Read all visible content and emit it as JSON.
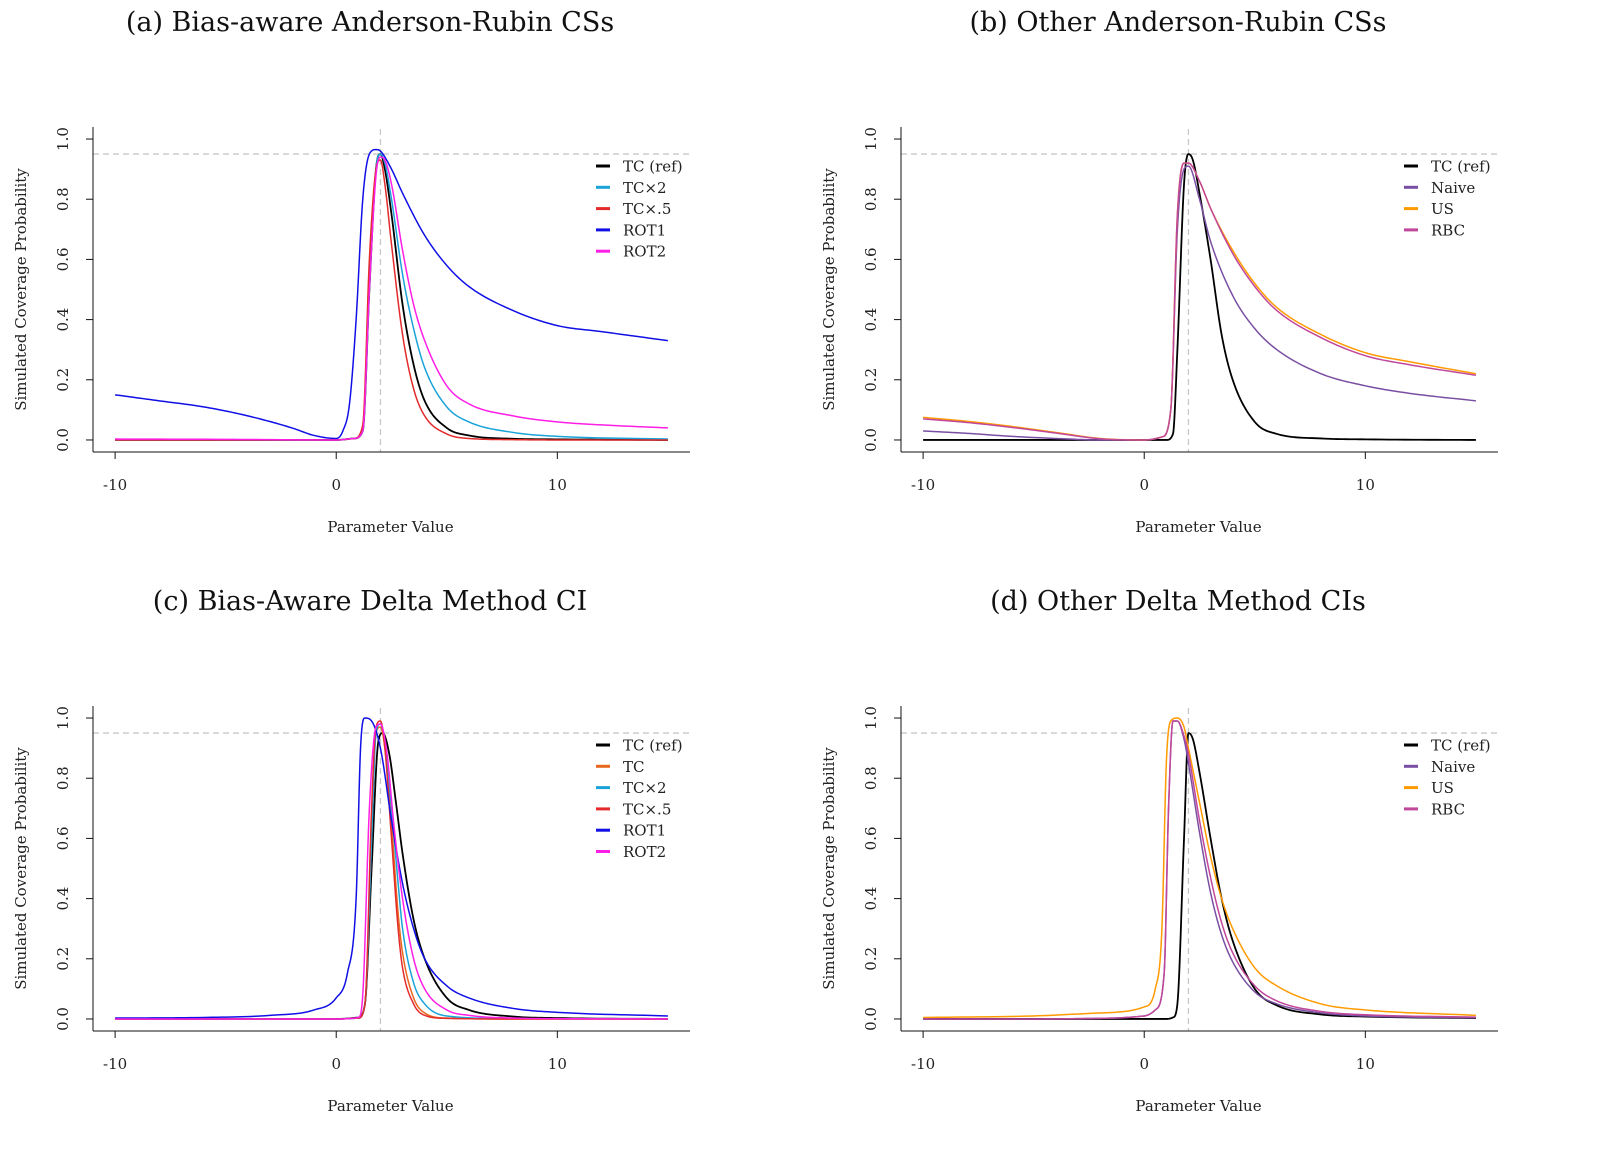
{
  "chart_data": [
    {
      "type": "line",
      "title": "(a) Bias-aware Anderson-Rubin CSs",
      "xlabel": "Parameter Value",
      "ylabel": "Simulated Coverage Probability",
      "xlim": [
        -11,
        16
      ],
      "ylim": [
        -0.04,
        1.04
      ],
      "xticks": [
        -10,
        0,
        10
      ],
      "yticks": [
        0.0,
        0.2,
        0.4,
        0.6,
        0.8,
        1.0
      ],
      "xtick_labels": [
        "-10",
        "0",
        "10"
      ],
      "ytick_labels": [
        "0.0",
        "0.2",
        "0.4",
        "0.6",
        "0.8",
        "1.0"
      ],
      "reference_lines": {
        "vertical_x": 2,
        "horizontal_y": 0.95,
        "color": "#c8c8c8"
      },
      "legend_position": "top-right",
      "series": [
        {
          "name": "TC (ref)",
          "color": "#000000",
          "x": [
            -10,
            -5,
            0,
            0.8,
            1.2,
            1.5,
            1.8,
            2,
            2.2,
            2.5,
            3,
            3.5,
            4,
            5,
            6,
            8,
            10,
            15
          ],
          "y": [
            0,
            0,
            0,
            0.005,
            0.03,
            0.5,
            0.9,
            0.95,
            0.9,
            0.75,
            0.45,
            0.25,
            0.13,
            0.04,
            0.015,
            0.004,
            0.002,
            0
          ]
        },
        {
          "name": "TC×2",
          "color": "#1aa3d9",
          "x": [
            -10,
            -5,
            0,
            0.8,
            1.2,
            1.5,
            1.8,
            2,
            2.2,
            2.5,
            3,
            3.5,
            4,
            5,
            6,
            8,
            10,
            15
          ],
          "y": [
            0,
            0,
            0,
            0.005,
            0.03,
            0.5,
            0.9,
            0.95,
            0.92,
            0.8,
            0.55,
            0.37,
            0.24,
            0.11,
            0.06,
            0.025,
            0.012,
            0.003
          ]
        },
        {
          "name": "TC×.5",
          "color": "#e32b2b",
          "x": [
            -10,
            -5,
            0,
            0.8,
            1.2,
            1.5,
            1.8,
            2,
            2.2,
            2.5,
            3,
            3.5,
            4,
            5,
            6,
            8,
            10,
            15
          ],
          "y": [
            0,
            0,
            0,
            0.005,
            0.05,
            0.6,
            0.9,
            0.93,
            0.85,
            0.65,
            0.35,
            0.17,
            0.08,
            0.02,
            0.005,
            0.001,
            0,
            0
          ]
        },
        {
          "name": "ROT1",
          "color": "#1010e6",
          "x": [
            -10,
            -8,
            -6,
            -4,
            -2,
            -1,
            0,
            0.3,
            0.6,
            0.9,
            1.2,
            1.5,
            1.8,
            2,
            2.5,
            3,
            4,
            5,
            6,
            8,
            10,
            12,
            15
          ],
          "y": [
            0.15,
            0.13,
            0.11,
            0.08,
            0.04,
            0.015,
            0.005,
            0.03,
            0.12,
            0.4,
            0.8,
            0.95,
            0.965,
            0.96,
            0.9,
            0.82,
            0.68,
            0.58,
            0.51,
            0.43,
            0.38,
            0.36,
            0.33
          ]
        },
        {
          "name": "ROT2",
          "color": "#ff1ee6",
          "x": [
            -10,
            -5,
            0,
            0.8,
            1.2,
            1.5,
            1.8,
            2,
            2.2,
            2.5,
            3,
            3.5,
            4,
            5,
            6,
            8,
            10,
            12,
            15
          ],
          "y": [
            0.003,
            0.002,
            0,
            0.005,
            0.03,
            0.5,
            0.88,
            0.94,
            0.93,
            0.85,
            0.63,
            0.45,
            0.33,
            0.18,
            0.12,
            0.08,
            0.06,
            0.05,
            0.04
          ]
        }
      ]
    },
    {
      "type": "line",
      "title": "(b) Other Anderson-Rubin CSs",
      "xlabel": "Parameter Value",
      "ylabel": "Simulated Coverage Probability",
      "xlim": [
        -11,
        16
      ],
      "ylim": [
        -0.04,
        1.04
      ],
      "xticks": [
        -10,
        0,
        10
      ],
      "yticks": [
        0.0,
        0.2,
        0.4,
        0.6,
        0.8,
        1.0
      ],
      "xtick_labels": [
        "-10",
        "0",
        "10"
      ],
      "ytick_labels": [
        "0.0",
        "0.2",
        "0.4",
        "0.6",
        "0.8",
        "1.0"
      ],
      "reference_lines": {
        "vertical_x": 2,
        "horizontal_y": 0.95,
        "color": "#c8c8c8"
      },
      "legend_position": "top-right",
      "series": [
        {
          "name": "TC (ref)",
          "color": "#000000",
          "x": [
            -10,
            -5,
            0,
            1,
            1.3,
            1.5,
            1.8,
            2,
            2.2,
            2.5,
            3,
            3.5,
            4,
            5,
            6,
            8,
            10,
            15
          ],
          "y": [
            0,
            0,
            0,
            0,
            0.02,
            0.3,
            0.85,
            0.95,
            0.93,
            0.82,
            0.6,
            0.35,
            0.2,
            0.06,
            0.02,
            0.005,
            0.002,
            0
          ]
        },
        {
          "name": "Naive",
          "color": "#7a4fa3",
          "x": [
            -10,
            -8,
            -6,
            -4,
            -2,
            0,
            0.8,
            1.2,
            1.5,
            1.8,
            2,
            2.5,
            3,
            4,
            5,
            6,
            8,
            10,
            12,
            15
          ],
          "y": [
            0.03,
            0.022,
            0.012,
            0.005,
            0,
            0,
            0.01,
            0.1,
            0.7,
            0.9,
            0.91,
            0.8,
            0.66,
            0.48,
            0.37,
            0.3,
            0.22,
            0.18,
            0.155,
            0.13
          ]
        },
        {
          "name": "US",
          "color": "#ff9a00",
          "x": [
            -10,
            -8,
            -6,
            -4,
            -2,
            0,
            0.8,
            1.2,
            1.5,
            1.8,
            2,
            2.5,
            3,
            4,
            5,
            6,
            8,
            10,
            12,
            15
          ],
          "y": [
            0.075,
            0.062,
            0.045,
            0.025,
            0.005,
            0,
            0.01,
            0.1,
            0.75,
            0.92,
            0.92,
            0.86,
            0.77,
            0.63,
            0.52,
            0.44,
            0.35,
            0.29,
            0.26,
            0.22
          ]
        },
        {
          "name": "RBC",
          "color": "#c0479a",
          "x": [
            -10,
            -8,
            -6,
            -4,
            -2,
            0,
            0.8,
            1.2,
            1.5,
            1.8,
            2,
            2.5,
            3,
            4,
            5,
            6,
            8,
            10,
            12,
            15
          ],
          "y": [
            0.07,
            0.058,
            0.042,
            0.023,
            0.004,
            0,
            0.01,
            0.1,
            0.75,
            0.92,
            0.92,
            0.86,
            0.77,
            0.62,
            0.51,
            0.43,
            0.34,
            0.28,
            0.25,
            0.215
          ]
        }
      ]
    },
    {
      "type": "line",
      "title": "(c) Bias-Aware Delta Method CI",
      "xlabel": "Parameter Value",
      "ylabel": "Simulated Coverage Probability",
      "xlim": [
        -11,
        16
      ],
      "ylim": [
        -0.04,
        1.04
      ],
      "xticks": [
        -10,
        0,
        10
      ],
      "yticks": [
        0.0,
        0.2,
        0.4,
        0.6,
        0.8,
        1.0
      ],
      "xtick_labels": [
        "-10",
        "0",
        "10"
      ],
      "ytick_labels": [
        "0.0",
        "0.2",
        "0.4",
        "0.6",
        "0.8",
        "1.0"
      ],
      "reference_lines": {
        "vertical_x": 2,
        "horizontal_y": 0.95,
        "color": "#c8c8c8"
      },
      "legend_position": "top-right",
      "series": [
        {
          "name": "TC (ref)",
          "color": "#000000",
          "x": [
            -10,
            -5,
            0,
            1,
            1.3,
            1.6,
            1.9,
            2.1,
            2.4,
            2.7,
            3,
            3.5,
            4,
            5,
            6,
            8,
            10,
            15
          ],
          "y": [
            0,
            0,
            0,
            0.005,
            0.05,
            0.5,
            0.92,
            0.95,
            0.88,
            0.72,
            0.55,
            0.33,
            0.2,
            0.07,
            0.03,
            0.008,
            0.003,
            0
          ]
        },
        {
          "name": "TC",
          "color": "#e8671e",
          "x": [
            -10,
            -5,
            0,
            1,
            1.3,
            1.6,
            1.8,
            2,
            2.2,
            2.5,
            2.8,
            3,
            3.5,
            4,
            5,
            8,
            15
          ],
          "y": [
            0,
            0,
            0,
            0.003,
            0.05,
            0.6,
            0.95,
            0.97,
            0.9,
            0.65,
            0.35,
            0.22,
            0.07,
            0.02,
            0.003,
            0,
            0
          ]
        },
        {
          "name": "TC×2",
          "color": "#1aa3d9",
          "x": [
            -10,
            -5,
            0,
            1,
            1.3,
            1.6,
            1.8,
            2,
            2.2,
            2.5,
            2.8,
            3,
            3.5,
            4,
            5,
            8,
            15
          ],
          "y": [
            0,
            0,
            0,
            0.003,
            0.05,
            0.6,
            0.95,
            0.98,
            0.92,
            0.7,
            0.45,
            0.3,
            0.12,
            0.05,
            0.01,
            0.001,
            0
          ]
        },
        {
          "name": "TC×.5",
          "color": "#e32b2b",
          "x": [
            -10,
            -5,
            0,
            1,
            1.3,
            1.6,
            1.8,
            2,
            2.2,
            2.5,
            2.8,
            3,
            3.5,
            4,
            5,
            8,
            15
          ],
          "y": [
            0,
            0,
            0,
            0.003,
            0.05,
            0.7,
            0.97,
            0.99,
            0.9,
            0.6,
            0.3,
            0.17,
            0.05,
            0.012,
            0.002,
            0,
            0
          ]
        },
        {
          "name": "ROT1",
          "color": "#1010e6",
          "x": [
            -10,
            -6,
            -3,
            -1,
            0,
            0.5,
            0.9,
            1.1,
            1.3,
            1.6,
            2,
            2.5,
            3,
            3.5,
            4,
            5,
            6,
            8,
            10,
            15
          ],
          "y": [
            0.003,
            0.005,
            0.012,
            0.03,
            0.07,
            0.15,
            0.4,
            0.9,
            1.0,
            0.99,
            0.9,
            0.66,
            0.45,
            0.3,
            0.2,
            0.11,
            0.07,
            0.035,
            0.022,
            0.01
          ]
        },
        {
          "name": "ROT2",
          "color": "#ff1ee6",
          "x": [
            -10,
            -5,
            0,
            1,
            1.2,
            1.5,
            1.8,
            2,
            2.3,
            2.6,
            3,
            3.5,
            4,
            5,
            6,
            8,
            10,
            15
          ],
          "y": [
            0,
            0,
            0,
            0.005,
            0.08,
            0.7,
            0.97,
            0.98,
            0.88,
            0.65,
            0.4,
            0.2,
            0.1,
            0.03,
            0.012,
            0.003,
            0.001,
            0
          ]
        }
      ]
    },
    {
      "type": "line",
      "title": "(d) Other Delta Method CIs",
      "xlabel": "Parameter Value",
      "ylabel": "Simulated Coverage Probability",
      "xlim": [
        -11,
        16
      ],
      "ylim": [
        -0.04,
        1.04
      ],
      "xticks": [
        -10,
        0,
        10
      ],
      "yticks": [
        0.0,
        0.2,
        0.4,
        0.6,
        0.8,
        1.0
      ],
      "xtick_labels": [
        "-10",
        "0",
        "10"
      ],
      "ytick_labels": [
        "0.0",
        "0.2",
        "0.4",
        "0.6",
        "0.8",
        "1.0"
      ],
      "reference_lines": {
        "vertical_x": 2,
        "horizontal_y": 0.95,
        "color": "#c8c8c8"
      },
      "legend_position": "top-right",
      "series": [
        {
          "name": "TC (ref)",
          "color": "#000000",
          "x": [
            -10,
            -5,
            0,
            1,
            1.3,
            1.5,
            1.8,
            2,
            2.2,
            2.5,
            3,
            3.5,
            4,
            5,
            6,
            8,
            10,
            15
          ],
          "y": [
            0,
            0,
            0,
            0,
            0.005,
            0.05,
            0.6,
            0.95,
            0.93,
            0.82,
            0.6,
            0.4,
            0.26,
            0.1,
            0.045,
            0.015,
            0.008,
            0.003
          ]
        },
        {
          "name": "Naive",
          "color": "#7a4fa3",
          "x": [
            -10,
            -5,
            -2,
            0,
            0.5,
            0.9,
            1.1,
            1.3,
            1.5,
            1.8,
            2,
            2.5,
            3,
            3.5,
            4,
            5,
            6,
            8,
            10,
            15
          ],
          "y": [
            0,
            0,
            0.002,
            0.01,
            0.03,
            0.15,
            0.7,
            0.99,
            0.99,
            0.93,
            0.85,
            0.62,
            0.42,
            0.28,
            0.19,
            0.09,
            0.05,
            0.02,
            0.01,
            0.004
          ]
        },
        {
          "name": "US",
          "color": "#ff9a00",
          "x": [
            -10,
            -5,
            -2,
            0,
            0.5,
            0.8,
            1,
            1.2,
            1.5,
            1.8,
            2,
            2.5,
            3,
            3.5,
            4,
            5,
            6,
            8,
            10,
            15
          ],
          "y": [
            0.005,
            0.01,
            0.02,
            0.04,
            0.1,
            0.3,
            0.85,
            0.99,
            1.0,
            0.97,
            0.9,
            0.72,
            0.54,
            0.4,
            0.3,
            0.17,
            0.11,
            0.05,
            0.03,
            0.012
          ]
        },
        {
          "name": "RBC",
          "color": "#c0479a",
          "x": [
            -10,
            -5,
            -2,
            0,
            0.5,
            0.9,
            1.1,
            1.3,
            1.5,
            1.8,
            2,
            2.5,
            3,
            3.5,
            4,
            5,
            6,
            8,
            10,
            15
          ],
          "y": [
            0,
            0,
            0.002,
            0.01,
            0.03,
            0.15,
            0.7,
            0.99,
            0.99,
            0.94,
            0.88,
            0.66,
            0.47,
            0.32,
            0.22,
            0.11,
            0.06,
            0.025,
            0.014,
            0.006
          ]
        }
      ]
    }
  ]
}
